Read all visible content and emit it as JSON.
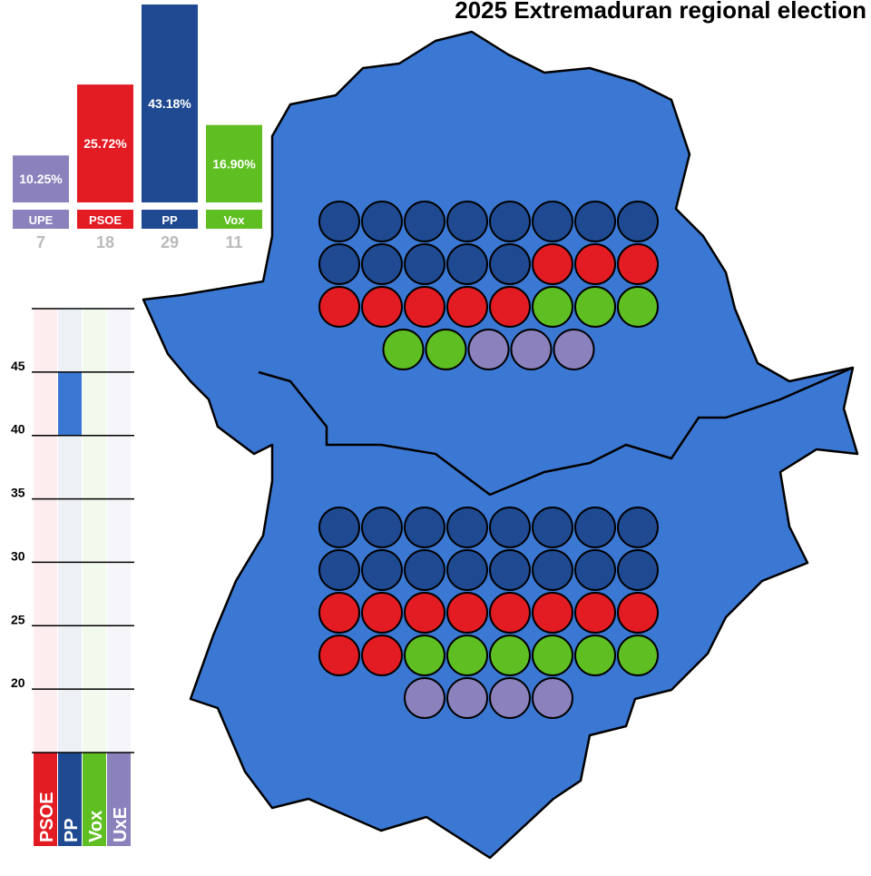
{
  "chart_data": [
    {
      "type": "bar",
      "title": "2025 Extremaduran regional election",
      "categories": [
        "UPE",
        "PSOE",
        "PP",
        "Vox"
      ],
      "values": [
        10.25,
        25.72,
        43.18,
        16.9
      ],
      "value_labels": [
        "10.25%",
        "25.72%",
        "43.18%",
        "16.90%"
      ],
      "seats": [
        7,
        18,
        29,
        11
      ],
      "colors": [
        "#8b82bd",
        "#e31b23",
        "#1f4a91",
        "#5fbf22"
      ]
    },
    {
      "type": "seats",
      "colors": [
        "#1f4a91",
        "#e31b23",
        "#5fbf22",
        "#8b82bd"
      ],
      "provinces": [
        [
          13,
          8,
          5,
          3
        ],
        [
          16,
          10,
          6,
          4
        ]
      ]
    },
    {
      "type": "range",
      "categories": [
        "PSOE",
        "PP",
        "Vox",
        "UxE"
      ],
      "colors": [
        "#e31b23",
        "#1f4a91",
        "#5fbf22",
        "#8b82bd"
      ],
      "range_color": "#3b78d4",
      "low": [
        null,
        40,
        null,
        null
      ],
      "high": [
        null,
        45,
        null,
        null
      ],
      "ylim": [
        15,
        50
      ],
      "yticks": [
        20,
        25,
        30,
        35,
        40,
        45
      ]
    }
  ]
}
